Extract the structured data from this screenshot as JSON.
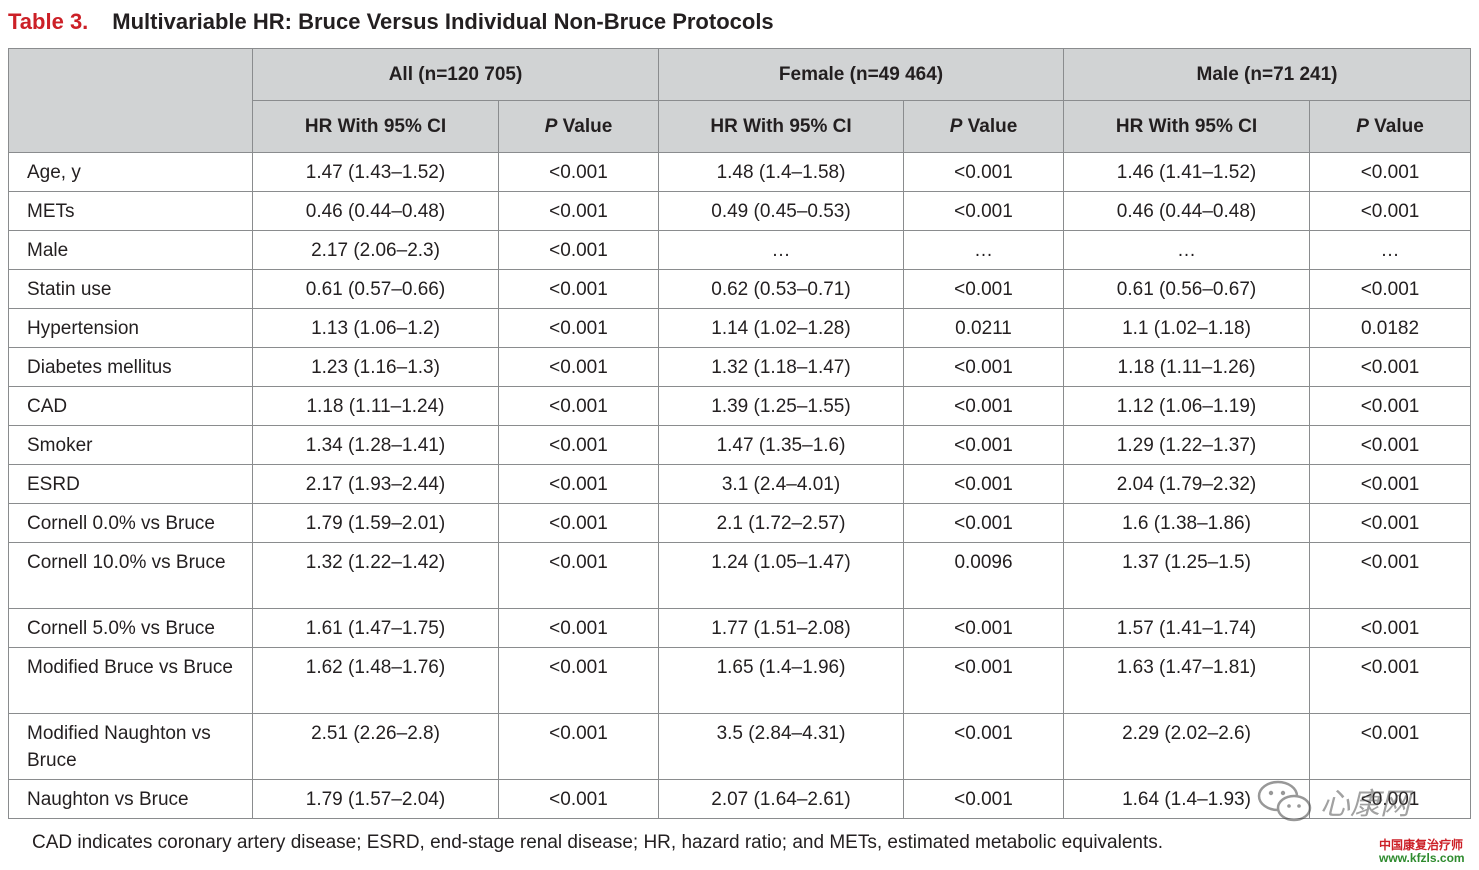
{
  "title": {
    "label": "Table 3.",
    "text": "Multivariable HR: Bruce Versus Individual Non-Bruce Protocols"
  },
  "groups": [
    "All (n=120 705)",
    "Female (n=49 464)",
    "Male (n=71 241)"
  ],
  "subheaders": {
    "hr": "HR With 95% CI",
    "p_italic": "P",
    "p_rest": " Value"
  },
  "rows": [
    {
      "label": "Age, y",
      "cells": [
        "1.47 (1.43–1.52)",
        "<0.001",
        "1.48 (1.4–1.58)",
        "<0.001",
        "1.46 (1.41–1.52)",
        "<0.001"
      ]
    },
    {
      "label": "METs",
      "cells": [
        "0.46 (0.44–0.48)",
        "<0.001",
        "0.49 (0.45–0.53)",
        "<0.001",
        "0.46 (0.44–0.48)",
        "<0.001"
      ]
    },
    {
      "label": "Male",
      "cells": [
        "2.17 (2.06–2.3)",
        "<0.001",
        "…",
        "…",
        "…",
        "…"
      ]
    },
    {
      "label": "Statin use",
      "cells": [
        "0.61 (0.57–0.66)",
        "<0.001",
        "0.62 (0.53–0.71)",
        "<0.001",
        "0.61 (0.56–0.67)",
        "<0.001"
      ]
    },
    {
      "label": "Hypertension",
      "cells": [
        "1.13 (1.06–1.2)",
        "<0.001",
        "1.14 (1.02–1.28)",
        "0.0211",
        "1.1 (1.02–1.18)",
        "0.0182"
      ]
    },
    {
      "label": "Diabetes mellitus",
      "cells": [
        "1.23 (1.16–1.3)",
        "<0.001",
        "1.32 (1.18–1.47)",
        "<0.001",
        "1.18 (1.11–1.26)",
        "<0.001"
      ]
    },
    {
      "label": "CAD",
      "cells": [
        "1.18 (1.11–1.24)",
        "<0.001",
        "1.39 (1.25–1.55)",
        "<0.001",
        "1.12 (1.06–1.19)",
        "<0.001"
      ]
    },
    {
      "label": "Smoker",
      "cells": [
        "1.34 (1.28–1.41)",
        "<0.001",
        "1.47 (1.35–1.6)",
        "<0.001",
        "1.29 (1.22–1.37)",
        "<0.001"
      ]
    },
    {
      "label": "ESRD",
      "cells": [
        "2.17 (1.93–2.44)",
        "<0.001",
        "3.1 (2.4–4.01)",
        "<0.001",
        "2.04 (1.79–2.32)",
        "<0.001"
      ]
    },
    {
      "label": "Cornell 0.0% vs Bruce",
      "cells": [
        "1.79 (1.59–2.01)",
        "<0.001",
        "2.1 (1.72–2.57)",
        "<0.001",
        "1.6 (1.38–1.86)",
        "<0.001"
      ]
    },
    {
      "label": "Cornell 10.0% vs Bruce",
      "cells": [
        "1.32 (1.22–1.42)",
        "<0.001",
        "1.24 (1.05–1.47)",
        "0.0096",
        "1.37 (1.25–1.5)",
        "<0.001"
      ]
    },
    {
      "label": "Cornell 5.0% vs Bruce",
      "cells": [
        "1.61 (1.47–1.75)",
        "<0.001",
        "1.77 (1.51–2.08)",
        "<0.001",
        "1.57 (1.41–1.74)",
        "<0.001"
      ]
    },
    {
      "label": "Modified Bruce vs Bruce",
      "cells": [
        "1.62 (1.48–1.76)",
        "<0.001",
        "1.65 (1.4–1.96)",
        "<0.001",
        "1.63 (1.47–1.81)",
        "<0.001"
      ]
    },
    {
      "label": "Modified Naughton vs Bruce",
      "cells": [
        "2.51 (2.26–2.8)",
        "<0.001",
        "3.5 (2.84–4.31)",
        "<0.001",
        "2.29 (2.02–2.6)",
        "<0.001"
      ]
    },
    {
      "label": "Naughton vs Bruce",
      "cells": [
        "1.79 (1.57–2.04)",
        "<0.001",
        "2.07 (1.64–2.61)",
        "<0.001",
        "1.64 (1.4–1.93)",
        "<0.001"
      ]
    }
  ],
  "footnote": "CAD indicates coronary artery disease; ESRD, end-stage renal disease; HR, hazard ratio; and METs, estimated metabolic equivalents.",
  "watermark": {
    "logo_text": "心康网",
    "org": "中国康复治疗师",
    "url": "www.kfzls.com"
  },
  "colors": {
    "title_label": "#cc2027",
    "header_bg": "#d1d3d4",
    "border": "#8a8c8e",
    "text": "#231f20"
  }
}
